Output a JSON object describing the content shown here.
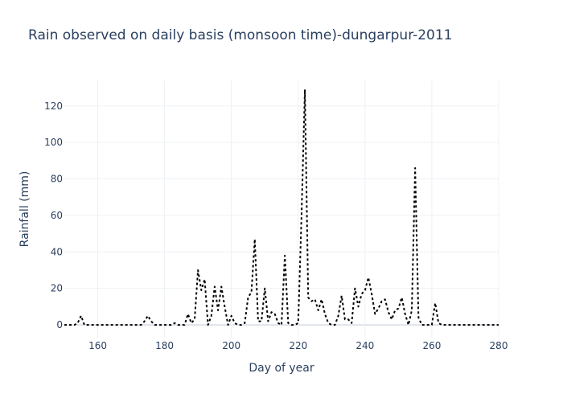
{
  "chart_data": {
    "type": "line",
    "title": "Rain observed on daily basis (monsoon time)-dungarpur-2011",
    "xlabel": "Day of year",
    "ylabel": "Rainfall (mm)",
    "xlim": [
      150,
      280
    ],
    "ylim": [
      -7,
      134
    ],
    "xticks": [
      160,
      180,
      200,
      220,
      240,
      260,
      280
    ],
    "yticks": [
      0,
      20,
      40,
      60,
      80,
      100,
      120
    ],
    "grid": true,
    "line_style": "dotted",
    "line_color": "#000000",
    "series": [
      {
        "x": [
          150,
          151,
          152,
          153,
          154,
          155,
          156,
          157,
          158,
          159,
          160,
          161,
          162,
          163,
          164,
          165,
          166,
          167,
          168,
          169,
          170,
          171,
          172,
          173,
          174,
          175,
          176,
          177,
          178,
          179,
          180,
          181,
          182,
          183,
          184,
          185,
          186,
          187,
          188,
          189,
          190,
          191,
          192,
          193,
          194,
          195,
          196,
          197,
          198,
          199,
          200,
          201,
          202,
          203,
          204,
          205,
          206,
          207,
          208,
          209,
          210,
          211,
          212,
          213,
          214,
          215,
          216,
          217,
          218,
          219,
          220,
          221,
          222,
          223,
          224,
          225,
          226,
          227,
          228,
          229,
          230,
          231,
          232,
          233,
          234,
          235,
          236,
          237,
          238,
          239,
          240,
          241,
          242,
          243,
          244,
          245,
          246,
          247,
          248,
          249,
          250,
          251,
          252,
          253,
          254,
          255,
          256,
          257,
          258,
          259,
          260,
          261,
          262,
          263,
          264,
          265,
          266,
          267,
          268,
          269,
          270,
          271,
          272,
          273,
          274,
          275,
          276,
          277,
          278,
          279,
          280
        ],
        "y": [
          0,
          0,
          0,
          0,
          1,
          5,
          0,
          0,
          0,
          0,
          0,
          0,
          0,
          0,
          0,
          0,
          0,
          0,
          0,
          0,
          0,
          0,
          0,
          0,
          2,
          5,
          2,
          0,
          0,
          0,
          0,
          0,
          0,
          1,
          0,
          0,
          0,
          6,
          1,
          3,
          30,
          19,
          25,
          0,
          5,
          21,
          8,
          21,
          10,
          0,
          5,
          1,
          0,
          0,
          1,
          15,
          18,
          47,
          2,
          2,
          20,
          2,
          7,
          6,
          1,
          0,
          38,
          1,
          0,
          0,
          1,
          60,
          129,
          15,
          13,
          14,
          8,
          14,
          6,
          1,
          0,
          0,
          5,
          16,
          3,
          3,
          1,
          20,
          10,
          17,
          19,
          26,
          17,
          6,
          9,
          13,
          14,
          7,
          3,
          8,
          9,
          15,
          6,
          0,
          8,
          86,
          4,
          0,
          0,
          0,
          0,
          12,
          1,
          0,
          0,
          0,
          0,
          0,
          0,
          0,
          0,
          0,
          0,
          0,
          0,
          0,
          0,
          0,
          0,
          0,
          0
        ]
      }
    ]
  }
}
